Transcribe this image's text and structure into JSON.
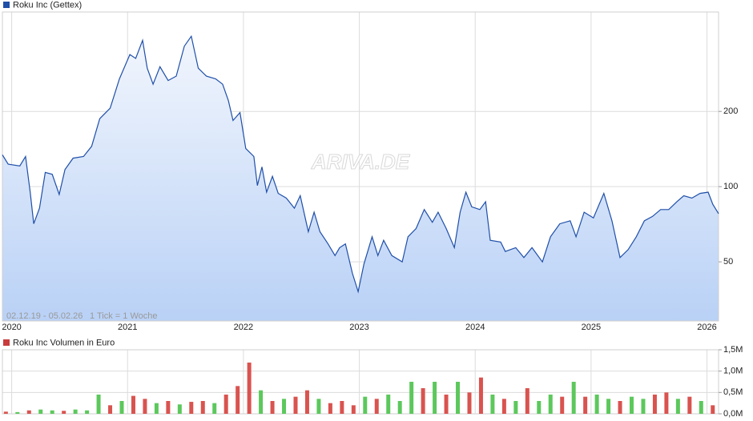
{
  "chart_data": [
    {
      "type": "line",
      "title": "Roku Inc (Gettex)",
      "color": "#1f4fa8",
      "log_scale": true,
      "grid": true,
      "range_label": "02.12.19 - 05.02.26",
      "tick_label": "1 Tick = 1 Woche",
      "watermark": "ARIVA.DE",
      "x": [
        2019.92,
        2019.97,
        2020.07,
        2020.12,
        2020.16,
        2020.19,
        2020.24,
        2020.29,
        2020.35,
        2020.41,
        2020.46,
        2020.53,
        2020.62,
        2020.69,
        2020.76,
        2020.85,
        2020.93,
        2021.02,
        2021.07,
        2021.13,
        2021.17,
        2021.22,
        2021.28,
        2021.35,
        2021.42,
        2021.49,
        2021.55,
        2021.61,
        2021.68,
        2021.76,
        2021.82,
        2021.87,
        2021.91,
        2021.97,
        2022.02,
        2022.09,
        2022.12,
        2022.16,
        2022.2,
        2022.25,
        2022.3,
        2022.37,
        2022.44,
        2022.49,
        2022.56,
        2022.61,
        2022.66,
        2022.73,
        2022.79,
        2022.83,
        2022.88,
        2022.94,
        2022.99,
        2023.04,
        2023.11,
        2023.16,
        2023.21,
        2023.28,
        2023.37,
        2023.42,
        2023.49,
        2023.56,
        2023.63,
        2023.68,
        2023.75,
        2023.82,
        2023.87,
        2023.92,
        2023.97,
        2024.04,
        2024.09,
        2024.13,
        2024.22,
        2024.26,
        2024.35,
        2024.42,
        2024.49,
        2024.58,
        2024.65,
        2024.73,
        2024.82,
        2024.87,
        2024.94,
        2025.02,
        2025.11,
        2025.18,
        2025.25,
        2025.32,
        2025.39,
        2025.46,
        2025.53,
        2025.6,
        2025.67,
        2025.74,
        2025.8,
        2025.87,
        2025.94,
        2026.01,
        2026.05,
        2026.1
      ],
      "values": [
        134,
        123,
        121,
        132,
        95,
        71,
        82,
        114,
        112,
        93,
        117,
        130,
        132,
        145,
        187,
        206,
        270,
        338,
        326,
        385,
        298,
        257,
        302,
        266,
        277,
        365,
        400,
        298,
        277,
        270,
        257,
        221,
        184,
        198,
        142,
        132,
        101,
        120,
        95,
        110,
        94,
        90,
        82,
        92,
        66,
        79,
        66,
        59,
        53,
        57,
        59,
        45,
        38,
        49,
        63,
        53,
        61,
        53,
        50,
        63,
        68,
        81,
        72,
        79,
        68,
        57,
        79,
        95,
        83,
        81,
        87,
        61,
        60,
        55,
        57,
        52,
        57,
        50,
        63,
        71,
        73,
        63,
        79,
        75,
        94,
        73,
        52,
        56,
        63,
        73,
        76,
        81,
        81,
        87,
        92,
        90,
        94,
        95,
        85,
        78
      ],
      "xlim": [
        2019.92,
        2026.1
      ],
      "xticks": [
        2020,
        2021,
        2022,
        2023,
        2024,
        2025,
        2026
      ],
      "ylim": [
        29,
        500
      ],
      "yticks": [
        50,
        100,
        200
      ]
    },
    {
      "type": "bar",
      "title": "Roku Inc Volumen in Euro",
      "color": "#c83c3c",
      "grid": true,
      "x": [
        2019.95,
        2020.05,
        2020.15,
        2020.25,
        2020.35,
        2020.45,
        2020.55,
        2020.65,
        2020.75,
        2020.85,
        2020.95,
        2021.05,
        2021.15,
        2021.25,
        2021.35,
        2021.45,
        2021.55,
        2021.65,
        2021.75,
        2021.85,
        2021.95,
        2022.05,
        2022.15,
        2022.25,
        2022.35,
        2022.45,
        2022.55,
        2022.65,
        2022.75,
        2022.85,
        2022.95,
        2023.05,
        2023.15,
        2023.25,
        2023.35,
        2023.45,
        2023.55,
        2023.65,
        2023.75,
        2023.85,
        2023.95,
        2024.05,
        2024.15,
        2024.25,
        2024.35,
        2024.45,
        2024.55,
        2024.65,
        2024.75,
        2024.85,
        2024.95,
        2025.05,
        2025.15,
        2025.25,
        2025.35,
        2025.45,
        2025.55,
        2025.65,
        2025.75,
        2025.85,
        2025.95,
        2026.05
      ],
      "values": [
        0.05,
        0.04,
        0.08,
        0.1,
        0.08,
        0.07,
        0.1,
        0.08,
        0.45,
        0.2,
        0.3,
        0.42,
        0.35,
        0.25,
        0.3,
        0.22,
        0.28,
        0.3,
        0.25,
        0.45,
        0.65,
        1.2,
        0.55,
        0.3,
        0.35,
        0.4,
        0.55,
        0.35,
        0.25,
        0.3,
        0.2,
        0.4,
        0.35,
        0.45,
        0.3,
        0.75,
        0.6,
        0.75,
        0.45,
        0.75,
        0.5,
        0.85,
        0.45,
        0.35,
        0.3,
        0.6,
        0.3,
        0.45,
        0.4,
        0.75,
        0.4,
        0.45,
        0.35,
        0.3,
        0.4,
        0.35,
        0.45,
        0.5,
        0.35,
        0.4,
        0.3,
        0.2
      ],
      "colors": [
        "#d9534f",
        "#5cc85c",
        "#d9534f",
        "#5cc85c",
        "#5cc85c",
        "#d9534f",
        "#5cc85c",
        "#5cc85c",
        "#5cc85c",
        "#d9534f",
        "#5cc85c",
        "#d9534f",
        "#d9534f",
        "#5cc85c",
        "#d9534f",
        "#5cc85c",
        "#d9534f",
        "#d9534f",
        "#5cc85c",
        "#d9534f",
        "#d9534f",
        "#d9534f",
        "#5cc85c",
        "#d9534f",
        "#5cc85c",
        "#d9534f",
        "#d9534f",
        "#5cc85c",
        "#d9534f",
        "#d9534f",
        "#d9534f",
        "#5cc85c",
        "#d9534f",
        "#5cc85c",
        "#5cc85c",
        "#5cc85c",
        "#d9534f",
        "#5cc85c",
        "#d9534f",
        "#5cc85c",
        "#d9534f",
        "#d9534f",
        "#5cc85c",
        "#d9534f",
        "#5cc85c",
        "#d9534f",
        "#5cc85c",
        "#5cc85c",
        "#d9534f",
        "#5cc85c",
        "#d9534f",
        "#5cc85c",
        "#5cc85c",
        "#d9534f",
        "#5cc85c",
        "#5cc85c",
        "#d9534f",
        "#d9534f",
        "#5cc85c",
        "#d9534f",
        "#5cc85c",
        "#d9534f"
      ],
      "ylim": [
        0,
        1.5
      ],
      "yticks": [
        {
          "value": 0,
          "label": "0,0M"
        },
        {
          "value": 0.5,
          "label": "0,5M"
        },
        {
          "value": 1,
          "label": "1,0M"
        },
        {
          "value": 1.5,
          "label": "1,5M"
        }
      ]
    }
  ]
}
